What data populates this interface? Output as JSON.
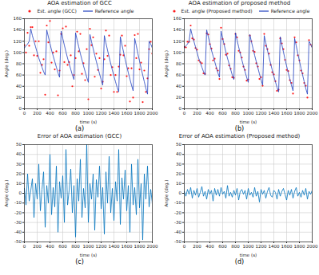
{
  "chart_data": [
    {
      "type": "scatter",
      "title": "AOA estimation of GCC",
      "caption": "(a)",
      "x_label": "time (s)",
      "y_label": "Angle (deg.)",
      "xlim": [
        0,
        2000
      ],
      "xticks": [
        0,
        200,
        400,
        600,
        800,
        1000,
        1200,
        1400,
        1600,
        1800,
        2000
      ],
      "ylim": [
        0,
        160
      ],
      "yticks": [
        0,
        20,
        40,
        60,
        80,
        100,
        120,
        140,
        160
      ],
      "grid": true,
      "legend": "top",
      "x": [
        0,
        25,
        50,
        75,
        100,
        125,
        150,
        175,
        200,
        225,
        250,
        275,
        300,
        325,
        350,
        375,
        400,
        425,
        450,
        475,
        500,
        525,
        550,
        575,
        600,
        625,
        650,
        675,
        700,
        725,
        750,
        775,
        800,
        825,
        850,
        875,
        900,
        925,
        950,
        975,
        1000,
        1025,
        1050,
        1075,
        1100,
        1125,
        1150,
        1175,
        1200,
        1225,
        1250,
        1275,
        1300,
        1325,
        1350,
        1375,
        1400,
        1425,
        1450,
        1475,
        1500,
        1525,
        1550,
        1575,
        1600,
        1625,
        1650,
        1675,
        1700,
        1725,
        1750,
        1775,
        1800,
        1825,
        1850,
        1875,
        1900,
        1925,
        1950,
        1975,
        2000
      ],
      "series": [
        {
          "name": "Est. angle (GCC)",
          "type": "scatter",
          "marker": "dot",
          "color": "#ff1a1a",
          "values": [
            113,
            100,
            135,
            112,
            145,
            145,
            95,
            120,
            94,
            120,
            64,
            78,
            88,
            25,
            148,
            118,
            156,
            82,
            100,
            70,
            102,
            24,
            68,
            133,
            143,
            83,
            146,
            78,
            83,
            95,
            40,
            60,
            90,
            137,
            102,
            133,
            62,
            81,
            51,
            106,
            17,
            142,
            113,
            127,
            57,
            98,
            69,
            90,
            36,
            48,
            88,
            139,
            94,
            130,
            60,
            74,
            30,
            60,
            30,
            75,
            96,
            130,
            95,
            112,
            58,
            72,
            13,
            72,
            20,
            131,
            90,
            133,
            70,
            82,
            12,
            68,
            30,
            54,
            106,
            119,
            98
          ]
        },
        {
          "name": "Reference angle",
          "type": "line",
          "line_style": "solid",
          "color": "#1f3fbf",
          "values": [
            108,
            112,
            115,
            120,
            142,
            130,
            120,
            110,
            100,
            90,
            82,
            74,
            66,
            60,
            140,
            128,
            116,
            104,
            94,
            84,
            74,
            64,
            56,
            138,
            125,
            113,
            101,
            90,
            80,
            70,
            60,
            52,
            135,
            122,
            110,
            98,
            87,
            76,
            66,
            56,
            47,
            132,
            119,
            107,
            95,
            84,
            73,
            62,
            52,
            42,
            130,
            117,
            104,
            92,
            80,
            69,
            58,
            48,
            38,
            30,
            128,
            114,
            101,
            88,
            76,
            64,
            53,
            42,
            32,
            125,
            112,
            98,
            85,
            72,
            60,
            48,
            36,
            26,
            120,
            115,
            108
          ]
        }
      ]
    },
    {
      "type": "scatter",
      "title": "AOA estimation of proposed method",
      "caption": "(b)",
      "x_label": "time (s)",
      "y_label": "Angle (deg.)",
      "xlim": [
        0,
        2000
      ],
      "xticks": [
        0,
        200,
        400,
        600,
        800,
        1000,
        1200,
        1400,
        1600,
        1800,
        2000
      ],
      "ylim": [
        0,
        160
      ],
      "yticks": [
        0,
        20,
        40,
        60,
        80,
        100,
        120,
        140,
        160
      ],
      "grid": true,
      "legend": "top",
      "x": [
        0,
        25,
        50,
        75,
        100,
        125,
        150,
        175,
        200,
        225,
        250,
        275,
        300,
        325,
        350,
        375,
        400,
        425,
        450,
        475,
        500,
        525,
        550,
        575,
        600,
        625,
        650,
        675,
        700,
        725,
        750,
        775,
        800,
        825,
        850,
        875,
        900,
        925,
        950,
        975,
        1000,
        1025,
        1050,
        1075,
        1100,
        1125,
        1150,
        1175,
        1200,
        1225,
        1250,
        1275,
        1300,
        1325,
        1350,
        1375,
        1400,
        1425,
        1450,
        1475,
        1500,
        1525,
        1550,
        1575,
        1600,
        1625,
        1650,
        1675,
        1700,
        1725,
        1750,
        1775,
        1800,
        1825,
        1850,
        1875,
        1900,
        1925,
        1950,
        1975,
        2000
      ],
      "series": [
        {
          "name": "Est. angle (Proposed method)",
          "type": "scatter",
          "marker": "dot",
          "color": "#ff1a1a",
          "values": [
            110,
            109,
            119,
            119,
            148,
            125,
            123,
            108,
            105,
            86,
            83,
            81,
            63,
            62,
            134,
            132,
            115,
            107,
            86,
            89,
            72,
            68,
            53,
            144,
            124,
            115,
            96,
            98,
            77,
            71,
            56,
            55,
            133,
            127,
            103,
            100,
            91,
            75,
            69,
            50,
            52,
            130,
            120,
            103,
            101,
            81,
            75,
            53,
            56,
            41,
            133,
            112,
            106,
            98,
            78,
            65,
            61,
            49,
            32,
            34,
            125,
            116,
            106,
            87,
            69,
            67,
            51,
            46,
            27,
            127,
            118,
            95,
            86,
            68,
            63,
            46,
            41,
            20,
            122,
            114,
            111
          ]
        },
        {
          "name": "Reference angle",
          "type": "line",
          "line_style": "solid",
          "color": "#1f3fbf",
          "values": [
            108,
            112,
            115,
            120,
            142,
            130,
            120,
            110,
            100,
            90,
            82,
            74,
            66,
            60,
            140,
            128,
            116,
            104,
            94,
            84,
            74,
            64,
            56,
            138,
            125,
            113,
            101,
            90,
            80,
            70,
            60,
            52,
            135,
            122,
            110,
            98,
            87,
            76,
            66,
            56,
            47,
            132,
            119,
            107,
            95,
            84,
            73,
            62,
            52,
            42,
            130,
            117,
            104,
            92,
            80,
            69,
            58,
            48,
            38,
            30,
            128,
            114,
            101,
            88,
            76,
            64,
            53,
            42,
            32,
            125,
            112,
            98,
            85,
            72,
            60,
            48,
            36,
            26,
            120,
            115,
            108
          ]
        }
      ]
    },
    {
      "type": "line",
      "title": "Error of AOA estimation (GCC)",
      "caption": "(c)",
      "x_label": "time (s)",
      "y_label": "Angle (deg.)",
      "xlim": [
        0,
        2000
      ],
      "xticks": [
        0,
        200,
        400,
        600,
        800,
        1000,
        1200,
        1400,
        1600,
        1800,
        2000
      ],
      "ylim": [
        -50,
        50
      ],
      "yticks": [
        -50,
        -40,
        -30,
        -20,
        -10,
        0,
        10,
        20,
        30,
        40,
        50
      ],
      "grid": true,
      "x": [
        0,
        25,
        50,
        75,
        100,
        125,
        150,
        175,
        200,
        225,
        250,
        275,
        300,
        325,
        350,
        375,
        400,
        425,
        450,
        475,
        500,
        525,
        550,
        575,
        600,
        625,
        650,
        675,
        700,
        725,
        750,
        775,
        800,
        825,
        850,
        875,
        900,
        925,
        950,
        975,
        1000,
        1025,
        1050,
        1075,
        1100,
        1125,
        1150,
        1175,
        1200,
        1225,
        1250,
        1275,
        1300,
        1325,
        1350,
        1375,
        1400,
        1425,
        1450,
        1475,
        1500,
        1525,
        1550,
        1575,
        1600,
        1625,
        1650,
        1675,
        1700,
        1725,
        1750,
        1775,
        1800,
        1825,
        1850,
        1875,
        1900,
        1925,
        1950,
        1975,
        2000
      ],
      "series": [
        {
          "type": "line",
          "line_style": "solid",
          "color": "#0072bd",
          "values": [
            5,
            -12,
            20,
            -8,
            3,
            15,
            -25,
            10,
            -6,
            30,
            -18,
            4,
            22,
            -35,
            8,
            -10,
            40,
            -22,
            6,
            -14,
            28,
            -40,
            12,
            -5,
            18,
            -30,
            45,
            -12,
            3,
            25,
            -20,
            8,
            -45,
            15,
            -8,
            35,
            -25,
            5,
            -15,
            50,
            -30,
            10,
            -6,
            20,
            -38,
            14,
            -4,
            28,
            -16,
            6,
            -42,
            22,
            -10,
            38,
            -20,
            5,
            -28,
            12,
            -8,
            45,
            -32,
            16,
            -6,
            24,
            -18,
            8,
            -40,
            30,
            -12,
            6,
            -22,
            35,
            -15,
            10,
            -48,
            20,
            -6,
            28,
            -14,
            4,
            -10
          ]
        }
      ]
    },
    {
      "type": "line",
      "title": "Error of AOA estimation (Proposed method)",
      "caption": "(d)",
      "x_label": "time (s)",
      "y_label": "Angle (deg.)",
      "xlim": [
        0,
        2000
      ],
      "xticks": [
        0,
        200,
        400,
        600,
        800,
        1000,
        1200,
        1400,
        1600,
        1800,
        2000
      ],
      "ylim": [
        -50,
        50
      ],
      "yticks": [
        -50,
        -40,
        -30,
        -20,
        -10,
        0,
        10,
        20,
        30,
        40,
        50
      ],
      "grid": true,
      "x": [
        0,
        25,
        50,
        75,
        100,
        125,
        150,
        175,
        200,
        225,
        250,
        275,
        300,
        325,
        350,
        375,
        400,
        425,
        450,
        475,
        500,
        525,
        550,
        575,
        600,
        625,
        650,
        675,
        700,
        725,
        750,
        775,
        800,
        825,
        850,
        875,
        900,
        925,
        950,
        975,
        1000,
        1025,
        1050,
        1075,
        1100,
        1125,
        1150,
        1175,
        1200,
        1225,
        1250,
        1275,
        1300,
        1325,
        1350,
        1375,
        1400,
        1425,
        1450,
        1475,
        1500,
        1525,
        1550,
        1575,
        1600,
        1625,
        1650,
        1675,
        1700,
        1725,
        1750,
        1775,
        1800,
        1825,
        1850,
        1875,
        1900,
        1925,
        1950,
        1975,
        2000
      ],
      "series": [
        {
          "type": "line",
          "line_style": "solid",
          "color": "#0072bd",
          "values": [
            2,
            -3,
            4,
            -1,
            6,
            -5,
            3,
            -2,
            5,
            -4,
            1,
            7,
            -3,
            2,
            -6,
            4,
            -1,
            3,
            -8,
            5,
            -2,
            4,
            -3,
            6,
            -1,
            2,
            -5,
            8,
            -3,
            1,
            -4,
            3,
            -2,
            5,
            -7,
            2,
            4,
            -1,
            3,
            -6,
            5,
            -2,
            1,
            -4,
            6,
            -3,
            2,
            -9,
            4,
            -1,
            3,
            -5,
            2,
            6,
            -2,
            -4,
            3,
            1,
            -6,
            4,
            -3,
            2,
            5,
            -1,
            -7,
            3,
            -2,
            4,
            -5,
            2,
            6,
            -3,
            1,
            -4,
            3,
            -2,
            5,
            -6,
            2,
            -1,
            3
          ]
        }
      ]
    }
  ]
}
